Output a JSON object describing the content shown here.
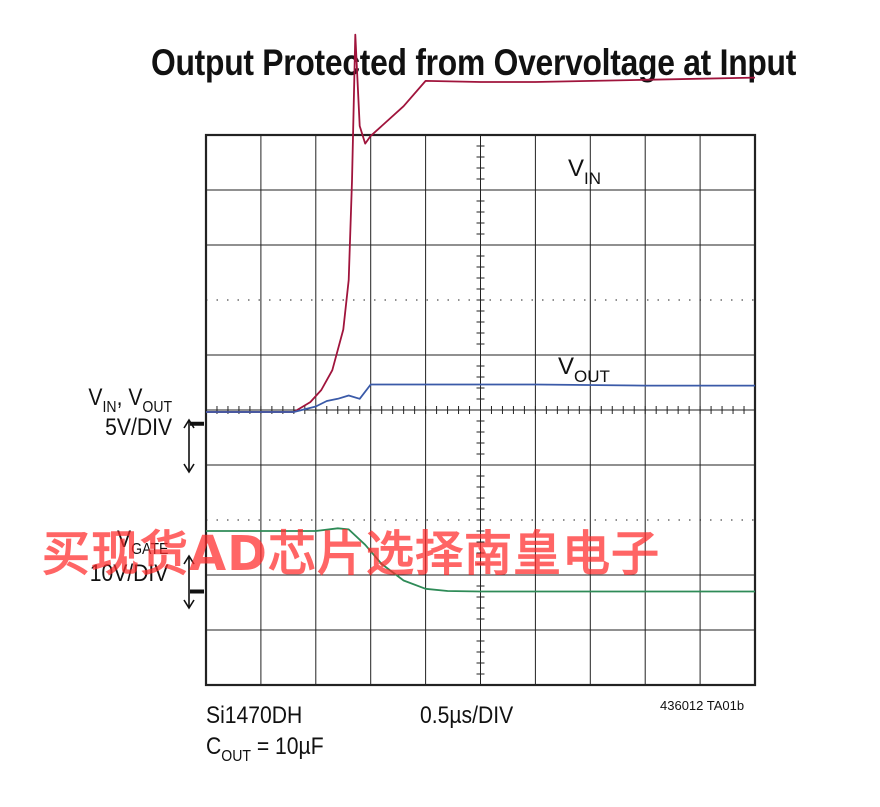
{
  "title": "Output Protected from Overvoltage at Input",
  "left_labels": {
    "vin_vout": {
      "main1": "V",
      "sub1": "IN",
      "mid": ", V",
      "sub2": "OUT"
    },
    "vin_vout_scale": "5V/DIV",
    "vgate": {
      "main": "V",
      "sub": "GATE"
    },
    "vgate_scale": "10V/DIV"
  },
  "trace_labels": {
    "vin": {
      "main": "V",
      "sub": "IN"
    },
    "vout": {
      "main": "V",
      "sub": "OUT"
    }
  },
  "bottom": {
    "part": "Si1470DH",
    "cout": {
      "main": "C",
      "sub": "OUT",
      "rest": " = 10µF"
    },
    "time_div": "0.5µs/DIV",
    "figure_code": "436012 TA01b"
  },
  "watermark": "买现货AD芯片选择南皇电子",
  "colors": {
    "vin": "#a0143c",
    "vout": "#3a5aa8",
    "vgate": "#2e8b57",
    "grid": "#222222"
  },
  "chart_data": {
    "type": "line",
    "title": "Output Protected from Overvoltage at Input",
    "x_units": "µs",
    "x_per_div": 0.5,
    "x_range": [
      0,
      5
    ],
    "grid": "10x10 divisions",
    "series": [
      {
        "name": "VIN",
        "units": "V",
        "v_per_div": 5,
        "ground_div": 4,
        "x": [
          0,
          0.8,
          0.95,
          1.05,
          1.15,
          1.25,
          1.3,
          1.33,
          1.36,
          1.4,
          1.45,
          1.5,
          1.6,
          1.8,
          2.0,
          2.5,
          3.0,
          4.0,
          5.0
        ],
        "values": [
          0,
          0,
          0.9,
          2.0,
          3.8,
          7.5,
          12,
          21,
          34.3,
          26,
          24.4,
          25.1,
          26.0,
          27.8,
          30.1,
          30.0,
          30.0,
          30.2,
          30.4
        ]
      },
      {
        "name": "VOUT",
        "units": "V",
        "v_per_div": 5,
        "ground_div": 4,
        "x": [
          0,
          0.8,
          1.0,
          1.1,
          1.2,
          1.3,
          1.4,
          1.5,
          2.0,
          3.0,
          4.0,
          5.0
        ],
        "values": [
          0,
          0,
          0.5,
          1.0,
          1.2,
          1.5,
          1.2,
          2.5,
          2.5,
          2.5,
          2.4,
          2.4
        ]
      },
      {
        "name": "VGATE",
        "units": "V",
        "v_per_div": 10,
        "ground_div": 1,
        "x": [
          0,
          0.8,
          1.0,
          1.2,
          1.3,
          1.45,
          1.6,
          1.8,
          2.0,
          2.2,
          2.5,
          3.0,
          4.0,
          5.0
        ],
        "values": [
          11,
          11,
          11,
          11.5,
          11.3,
          8.5,
          5,
          2,
          0.5,
          0.1,
          0,
          0,
          0,
          0
        ]
      }
    ]
  }
}
